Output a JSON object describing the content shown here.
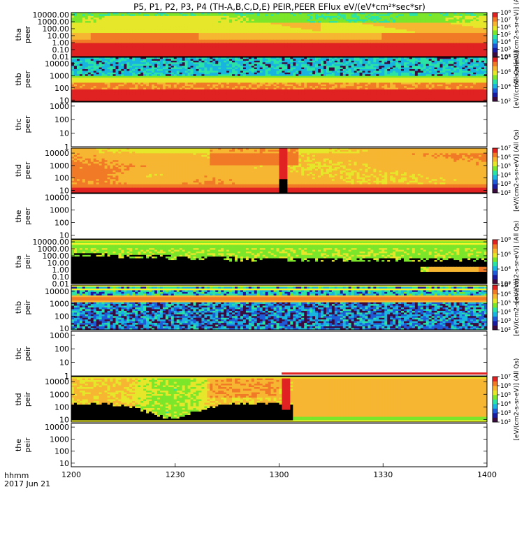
{
  "chart_data": {
    "type": "heatmap",
    "title": "P5, P1, P2, P3, P4 (TH-A,B,C,D,E) PEIR,PEER EFlux eV/(eV*cm²*sec*sr)",
    "x": {
      "tick_labels": [
        "1200",
        "1230",
        "1300",
        "1330",
        "1400"
      ],
      "tick_values": [
        0,
        30,
        60,
        90,
        120
      ],
      "range": [
        0,
        120
      ],
      "footer_lines": [
        "hhmm",
        "2017 Jun 21"
      ]
    },
    "panels": [
      {
        "id": "tha-peer",
        "label": [
          "tha",
          "peer"
        ],
        "pattern": "tha_peer",
        "yticks": [
          "0.01",
          "0.10",
          "1.00",
          "10.00",
          "100.00",
          "1000.00",
          "10000.00"
        ],
        "ylog": [
          -2,
          4.3
        ],
        "colorbar": {
          "ticks": [
            "10²",
            "10³",
            "10⁴",
            "10⁵",
            "10⁶",
            "10⁷",
            "10⁸"
          ],
          "label": "(All Qs)[eV/(cm2-s-sr-eV)] (All Qs)"
        }
      },
      {
        "id": "thb-peer",
        "label": [
          "thb",
          "peer"
        ],
        "pattern": "thb_peer",
        "yticks": [
          "10",
          "100",
          "1000",
          "10000"
        ],
        "ylog": [
          0.9,
          4.5
        ],
        "colorbar": {
          "ticks": [
            "10²",
            "10⁴",
            "10⁶",
            "10⁸"
          ],
          "label": "[eV/(cm2-s-sr-eV)]"
        }
      },
      {
        "id": "thc-peer",
        "label": [
          "thc",
          "peer"
        ],
        "pattern": "empty",
        "yticks": [
          "1",
          "10",
          "100",
          "1000"
        ],
        "ylog": [
          0,
          3.3
        ],
        "colorbar": null
      },
      {
        "id": "thd-peer",
        "label": [
          "thd",
          "peer"
        ],
        "pattern": "thd_peer",
        "yticks": [
          "10",
          "100",
          "1000",
          "10000"
        ],
        "ylog": [
          0.8,
          4.4
        ],
        "colorbar": {
          "ticks": [
            "10²",
            "10³",
            "10⁴",
            "10⁵",
            "10⁶",
            "10⁷"
          ],
          "label": "[eV/(cm2-s-sr-eV)] (All Qs)"
        }
      },
      {
        "id": "the-peer",
        "label": [
          "the",
          "peer"
        ],
        "pattern": "empty",
        "yticks": [
          "10",
          "100",
          "1000",
          "10000"
        ],
        "ylog": [
          0.7,
          4.3
        ],
        "colorbar": null
      },
      {
        "id": "tha-peir",
        "label": [
          "tha",
          "peir"
        ],
        "pattern": "tha_peir",
        "yticks": [
          "0.01",
          "0.10",
          "1.00",
          "10.00",
          "100.00",
          "1000.00",
          "10000.00"
        ],
        "ylog": [
          -2,
          4.3
        ],
        "colorbar": {
          "ticks": [
            "10²",
            "10⁴",
            "10⁶",
            "10⁸"
          ],
          "label": "[eV/(cm2-s-sr-eV)] (All Qs)"
        }
      },
      {
        "id": "thb-peir",
        "label": [
          "thb",
          "peir"
        ],
        "pattern": "thb_peir",
        "yticks": [
          "10",
          "100",
          "1000",
          "10000"
        ],
        "ylog": [
          0.9,
          4.5
        ],
        "colorbar": {
          "ticks": [
            "10²",
            "10³",
            "10⁴",
            "10⁵",
            "10⁶",
            "10⁷"
          ],
          "label": "[eV/(cm2-s-sr-eV)]"
        }
      },
      {
        "id": "thc-peir",
        "label": [
          "thc",
          "peir"
        ],
        "pattern": "empty",
        "yticks": [
          "1",
          "10",
          "100",
          "1000"
        ],
        "ylog": [
          0,
          3.3
        ],
        "colorbar": null
      },
      {
        "id": "thd-peir",
        "label": [
          "thd",
          "peir"
        ],
        "pattern": "thd_peir",
        "yticks": [
          "10",
          "100",
          "1000",
          "10000"
        ],
        "ylog": [
          0.8,
          4.4
        ],
        "colorbar": {
          "ticks": [
            "10²",
            "10³",
            "10⁴",
            "10⁵",
            "10⁶",
            "10⁷"
          ],
          "label": "[eV/(cm2-s-sr-eV)] (All Qs)"
        }
      },
      {
        "id": "the-peir",
        "label": [
          "the",
          "peir"
        ],
        "pattern": "empty",
        "yticks": [
          "10",
          "100",
          "1000",
          "10000"
        ],
        "ylog": [
          0.7,
          4.3
        ],
        "colorbar": null
      }
    ],
    "colormap": [
      "#3b0a3f",
      "#1a1aa0",
      "#1f5bd6",
      "#19b4e0",
      "#2be3a5",
      "#7be62a",
      "#e6e62a",
      "#f7b631",
      "#f07a26",
      "#e02222"
    ]
  }
}
